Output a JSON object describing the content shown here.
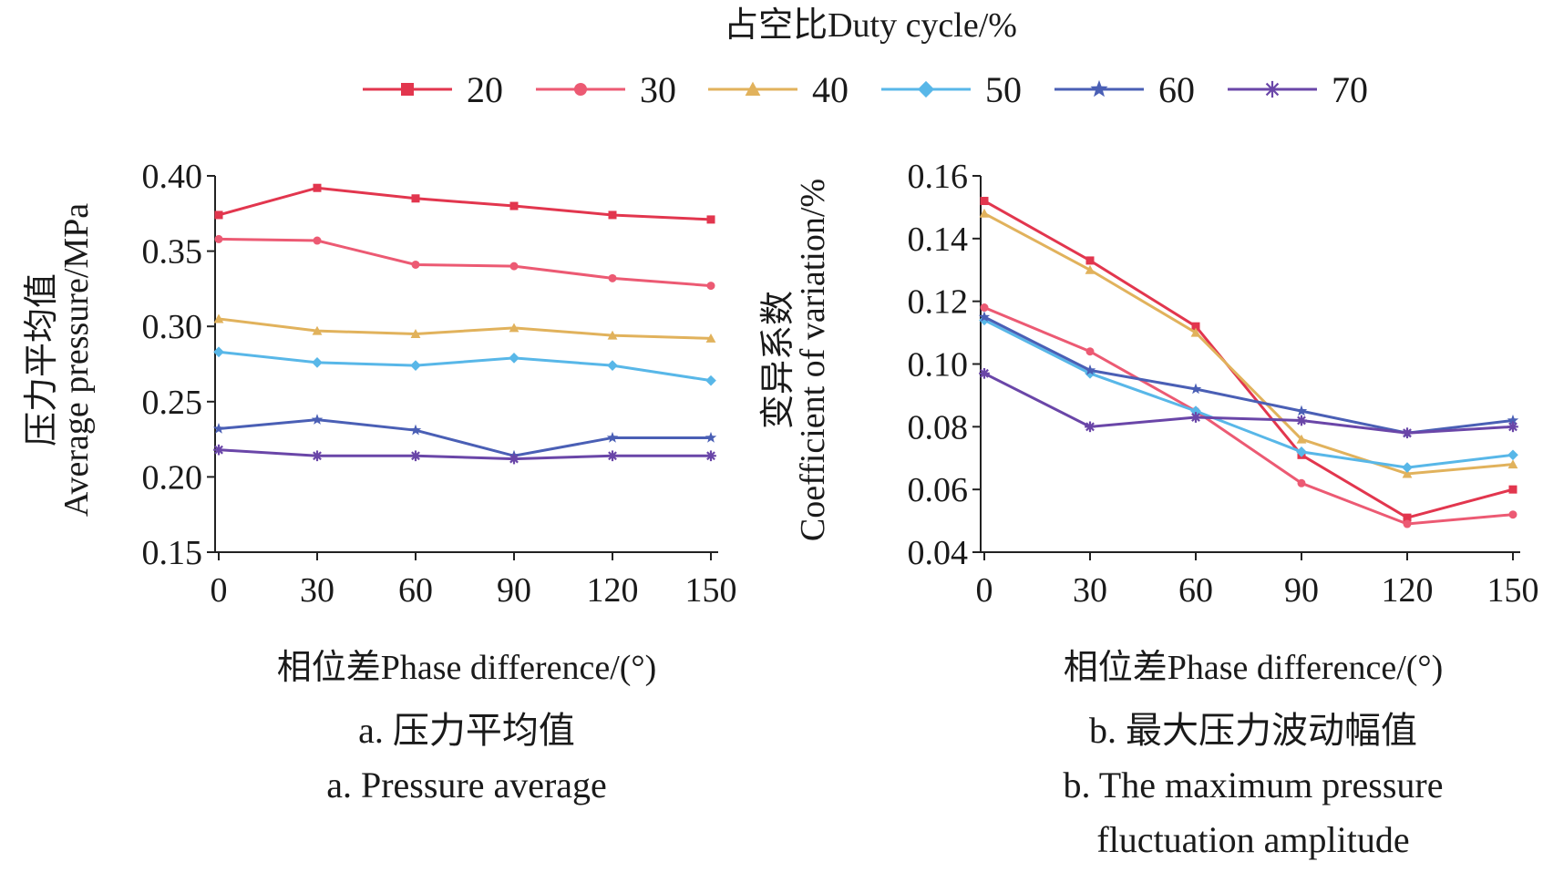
{
  "legend": {
    "title": "占空比Duty cycle/%",
    "items": [
      {
        "label": "20",
        "color": "#e2364e",
        "marker": "square"
      },
      {
        "label": "30",
        "color": "#ec5a73",
        "marker": "circle"
      },
      {
        "label": "40",
        "color": "#e1b25c",
        "marker": "triangle"
      },
      {
        "label": "50",
        "color": "#58b7e8",
        "marker": "diamond"
      },
      {
        "label": "60",
        "color": "#4a5fb5",
        "marker": "star"
      },
      {
        "label": "70",
        "color": "#6a46a8",
        "marker": "asterisk"
      }
    ]
  },
  "chart_data": [
    {
      "type": "line",
      "ylabel_cn": "压力平均值",
      "ylabel_en": "Average pressure/MPa",
      "xlabel": "相位差Phase difference/(°)",
      "caption_cn": "a. 压力平均值",
      "caption_en": "a. Pressure average",
      "x": [
        0,
        30,
        60,
        90,
        120,
        150
      ],
      "xticks": [
        "0",
        "30",
        "60",
        "90",
        "120",
        "150"
      ],
      "ylim": [
        0.15,
        0.4
      ],
      "yticks": [
        "0.15",
        "0.20",
        "0.25",
        "0.30",
        "0.35",
        "0.40"
      ],
      "series": [
        {
          "name": "20",
          "values": [
            0.374,
            0.392,
            0.385,
            0.38,
            0.374,
            0.371
          ]
        },
        {
          "name": "30",
          "values": [
            0.358,
            0.357,
            0.341,
            0.34,
            0.332,
            0.327
          ]
        },
        {
          "name": "40",
          "values": [
            0.305,
            0.297,
            0.295,
            0.299,
            0.294,
            0.292
          ]
        },
        {
          "name": "50",
          "values": [
            0.283,
            0.276,
            0.274,
            0.279,
            0.274,
            0.264
          ]
        },
        {
          "name": "60",
          "values": [
            0.232,
            0.238,
            0.231,
            0.214,
            0.226,
            0.226
          ]
        },
        {
          "name": "70",
          "values": [
            0.218,
            0.214,
            0.214,
            0.212,
            0.214,
            0.214
          ]
        }
      ]
    },
    {
      "type": "line",
      "ylabel_cn": "变异系数",
      "ylabel_en": "Coefficient of variation/%",
      "xlabel": "相位差Phase difference/(°)",
      "caption_cn": "b. 最大压力波动幅值",
      "caption_en": "b. The maximum pressure fluctuation amplitude",
      "caption_en_line1": "b. The maximum pressure",
      "caption_en_line2": "fluctuation amplitude",
      "x": [
        0,
        30,
        60,
        90,
        120,
        150
      ],
      "xticks": [
        "0",
        "30",
        "60",
        "90",
        "120",
        "150"
      ],
      "ylim": [
        0.04,
        0.16
      ],
      "yticks": [
        "0.04",
        "0.06",
        "0.08",
        "0.10",
        "0.12",
        "0.14",
        "0.16"
      ],
      "series": [
        {
          "name": "20",
          "values": [
            0.152,
            0.133,
            0.112,
            0.071,
            0.051,
            0.06
          ]
        },
        {
          "name": "30",
          "values": [
            0.118,
            0.104,
            0.085,
            0.062,
            0.049,
            0.052
          ]
        },
        {
          "name": "40",
          "values": [
            0.148,
            0.13,
            0.11,
            0.076,
            0.065,
            0.068
          ]
        },
        {
          "name": "50",
          "values": [
            0.114,
            0.097,
            0.085,
            0.072,
            0.067,
            0.071
          ]
        },
        {
          "name": "60",
          "values": [
            0.115,
            0.098,
            0.092,
            0.085,
            0.078,
            0.082
          ]
        },
        {
          "name": "70",
          "values": [
            0.097,
            0.08,
            0.083,
            0.082,
            0.078,
            0.08
          ]
        }
      ]
    }
  ]
}
